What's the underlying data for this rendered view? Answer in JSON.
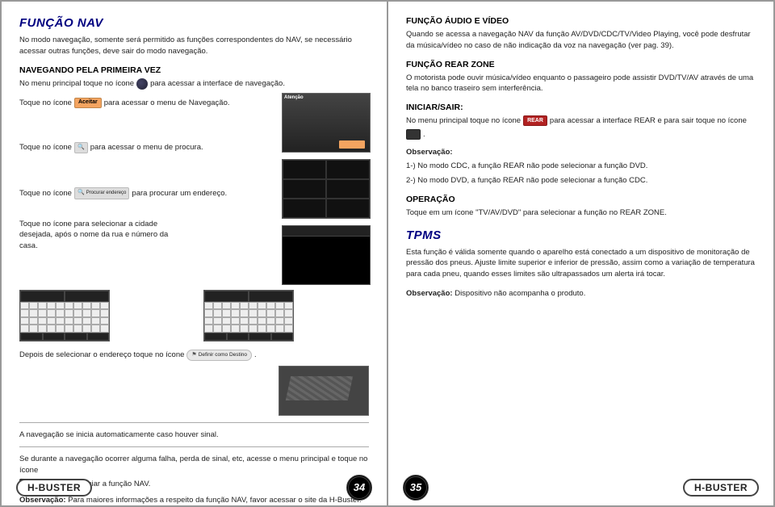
{
  "brand": "H-BUSTER",
  "page_left_num": "34",
  "page_right_num": "35",
  "left": {
    "title": "FUNÇÃO NAV",
    "intro": "No modo navegação, somente será permitido as funções correspondentes do NAV, se necessário acessar outras funções, deve sair do modo navegação.",
    "h2a": "NAVEGANDO PELA PRIMEIRA VEZ",
    "line1a": "No menu principal toque no ícone",
    "line1b": "para acessar a interface de navegação.",
    "line2a": "Toque no ícone",
    "btn_aceitar": "Aceitar",
    "line2b": "para acessar o menu de Navegação.",
    "line3a": "Toque no ícone",
    "line3b": "para acessar o menu de procura.",
    "line4a": "Toque no ícone",
    "btn_proc": "Procurar endereço",
    "line4b": "para procurar um endereço.",
    "line5": "Toque no ícone para selecionar a cidade desejada, após o nome da rua e número da casa.",
    "line6a": "Depois de selecionar o endereço toque no ícone",
    "btn_dest": "Definir como Destino",
    "line6b": ".",
    "line7": "A navegação se inicia automaticamente caso houver sinal.",
    "line8a": "Se durante a navegação ocorrer alguma falha, perda de sinal, etc, acesse o menu principal e toque no ícone",
    "btn_restart": "NAV RESTART",
    "line8b": " para reiniciar a função NAV.",
    "obs_label": "Observação:",
    "obs_text": " Para maiores informações a respeito da função NAV, favor acessar o site da H-Buster."
  },
  "right": {
    "h2a": "FUNÇÃO ÁUDIO E VÍDEO",
    "p1": "Quando se acessa a navegação NAV da função AV/DVD/CDC/TV/Video Playing, você pode desfrutar da música/vídeo no caso de não indicação da voz na navegação (ver pag. 39).",
    "h2b": "FUNÇÃO REAR ZONE",
    "p2": "O motorista pode ouvir música/vídeo enquanto o passageiro pode assistir DVD/TV/AV através de uma tela no banco traseiro sem interferência.",
    "h2c": "INICIAR/SAIR:",
    "p3a": "No menu principal toque no ícone",
    "btn_rear": "REAR",
    "p3b": "para acessar a interface REAR e para sair toque no ícone",
    "p3c": ".",
    "obs1_label": "Observação:",
    "obs1_1": "1-) No modo CDC, a função REAR não pode selecionar a função DVD.",
    "obs1_2": "2-) No modo DVD, a função REAR não pode selecionar a função CDC.",
    "h2d": "OPERAÇÃO",
    "p4": "Toque em um ícone \"TV/AV/DVD\" para selecionar a função no REAR ZONE.",
    "tpms_title": "TPMS",
    "p5": "Esta função é válida somente quando o aparelho está conectado a um dispositivo de monitoração de pressão dos pneus. Ajuste limite superior e inferior de pressão, assim como a variação de temperatura para cada pneu, quando esses limites são ultrapassados um alerta irá tocar.",
    "obs2_label": "Observação:",
    "obs2_text": " Dispositivo não acompanha o produto."
  }
}
